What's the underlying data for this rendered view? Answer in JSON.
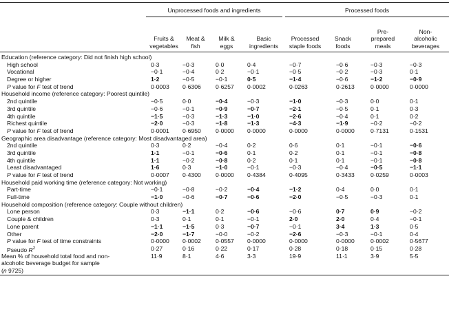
{
  "groups": {
    "unprocessed": "Unprocessed foods and ingredients",
    "processed": "Processed foods"
  },
  "columns": [
    [
      "Fruits &",
      "vegetables"
    ],
    [
      "Meat &",
      "fish"
    ],
    [
      "Milk &",
      "eggs"
    ],
    [
      "Basic",
      "ingredients"
    ],
    [
      "Processed",
      "staple foods"
    ],
    [
      "Snack",
      "foods"
    ],
    [
      "Pre-",
      "prepared",
      "meals"
    ],
    [
      "Non-",
      "alcoholic",
      "beverages"
    ]
  ],
  "rows": [
    {
      "t": "sec",
      "label": "Education (reference category: Did not finish high school)"
    },
    {
      "t": "d",
      "label": "High school",
      "v": [
        [
          "0·3",
          0
        ],
        [
          "−0·3",
          0
        ],
        [
          "0·0",
          0
        ],
        [
          "0·4",
          0
        ],
        [
          "−0·7",
          0
        ],
        [
          "−0·6",
          0
        ],
        [
          "−0·3",
          0
        ],
        [
          "−0·3",
          0
        ]
      ]
    },
    {
      "t": "d",
      "label": "Vocational",
      "v": [
        [
          "−0·1",
          0
        ],
        [
          "−0·4",
          0
        ],
        [
          "0·2",
          0
        ],
        [
          "−0·1",
          0
        ],
        [
          "−0·5",
          0
        ],
        [
          "−0·2",
          0
        ],
        [
          "−0·3",
          0
        ],
        [
          "0·1",
          0
        ]
      ]
    },
    {
      "t": "d",
      "label": "Degree or higher",
      "v": [
        [
          "1·2",
          1
        ],
        [
          "−0·5",
          0
        ],
        [
          "−0·1",
          0
        ],
        [
          "0·5",
          1
        ],
        [
          "−1·4",
          1
        ],
        [
          "−0·6",
          0
        ],
        [
          "−1·2",
          1
        ],
        [
          "−0·9",
          1
        ]
      ]
    },
    {
      "t": "p",
      "pre": "P",
      "label": " value for F test of trend",
      "v": [
        [
          "0·0003",
          0
        ],
        [
          "0·6306",
          0
        ],
        [
          "0·6257",
          0
        ],
        [
          "0·0002",
          0
        ],
        [
          "0·0263",
          0
        ],
        [
          "0·2613",
          0
        ],
        [
          "0·0000",
          0
        ],
        [
          "0·0000",
          0
        ]
      ]
    },
    {
      "t": "sec",
      "label": "Household income (reference category: Poorest quintile)"
    },
    {
      "t": "d",
      "label": "2nd quintile",
      "v": [
        [
          "−0·5",
          0
        ],
        [
          "0·0",
          0
        ],
        [
          "−0·4",
          1
        ],
        [
          "−0·3",
          0
        ],
        [
          "−1·0",
          1
        ],
        [
          "−0·3",
          0
        ],
        [
          "0·0",
          0
        ],
        [
          "0·1",
          0
        ]
      ]
    },
    {
      "t": "d",
      "label": "3rd quintile",
      "v": [
        [
          "−0·6",
          0
        ],
        [
          "−0·1",
          0
        ],
        [
          "−0·9",
          1
        ],
        [
          "−0·7",
          1
        ],
        [
          "−2·1",
          1
        ],
        [
          "−0·5",
          0
        ],
        [
          "0·1",
          0
        ],
        [
          "0·3",
          0
        ]
      ]
    },
    {
      "t": "d",
      "label": "4th quintile",
      "v": [
        [
          "−1·5",
          1
        ],
        [
          "−0·3",
          0
        ],
        [
          "−1·3",
          1
        ],
        [
          "−1·0",
          1
        ],
        [
          "−2·6",
          1
        ],
        [
          "−0·4",
          0
        ],
        [
          "0·1",
          0
        ],
        [
          "0·2",
          0
        ]
      ]
    },
    {
      "t": "d",
      "label": "Richest quintile",
      "v": [
        [
          "−2·0",
          1
        ],
        [
          "−0·3",
          0
        ],
        [
          "−1·8",
          1
        ],
        [
          "−1·3",
          1
        ],
        [
          "−4·3",
          1
        ],
        [
          "−1·9",
          1
        ],
        [
          "−0·2",
          0
        ],
        [
          "−0·2",
          0
        ]
      ]
    },
    {
      "t": "p",
      "pre": "P",
      "label": " value for F test of trend",
      "v": [
        [
          "0·0001",
          0
        ],
        [
          "0·6950",
          0
        ],
        [
          "0·0000",
          0
        ],
        [
          "0·0000",
          0
        ],
        [
          "0·0000",
          0
        ],
        [
          "0·0000",
          0
        ],
        [
          "0·7131",
          0
        ],
        [
          "0·1531",
          0
        ]
      ]
    },
    {
      "t": "sec",
      "label": "Geographic area disadvantage (reference category: Most disadvantaged area)"
    },
    {
      "t": "d",
      "label": "2nd quintile",
      "v": [
        [
          "0·3",
          0
        ],
        [
          "0·2",
          0
        ],
        [
          "−0·4",
          0
        ],
        [
          "0·2",
          0
        ],
        [
          "0·6",
          0
        ],
        [
          "0·1",
          0
        ],
        [
          "−0·1",
          0
        ],
        [
          "−0·6",
          1
        ]
      ]
    },
    {
      "t": "d",
      "label": "3rd quintile",
      "v": [
        [
          "1·1",
          1
        ],
        [
          "−0·1",
          0
        ],
        [
          "−0·6",
          1
        ],
        [
          "0·1",
          0
        ],
        [
          "0·2",
          0
        ],
        [
          "0·1",
          0
        ],
        [
          "−0·1",
          0
        ],
        [
          "−0·8",
          1
        ]
      ]
    },
    {
      "t": "d",
      "label": "4th quintile",
      "v": [
        [
          "1·1",
          1
        ],
        [
          "−0·2",
          0
        ],
        [
          "−0·8",
          1
        ],
        [
          "0·2",
          0
        ],
        [
          "0·1",
          0
        ],
        [
          "0·1",
          0
        ],
        [
          "−0·1",
          0
        ],
        [
          "−0·8",
          1
        ]
      ]
    },
    {
      "t": "d",
      "label": "Least disadvantaged",
      "v": [
        [
          "1·6",
          1
        ],
        [
          "0·3",
          0
        ],
        [
          "−1·0",
          1
        ],
        [
          "−0·1",
          0
        ],
        [
          "−0·3",
          0
        ],
        [
          "−0·4",
          0
        ],
        [
          "−0·5",
          1
        ],
        [
          "−1·1",
          1
        ]
      ]
    },
    {
      "t": "p",
      "pre": "P",
      "label": " value for F test of trend",
      "v": [
        [
          "0·0007",
          0
        ],
        [
          "0·4300",
          0
        ],
        [
          "0·0000",
          0
        ],
        [
          "0·4384",
          0
        ],
        [
          "0·4095",
          0
        ],
        [
          "0·3433",
          0
        ],
        [
          "0·0259",
          0
        ],
        [
          "0·0003",
          0
        ]
      ]
    },
    {
      "t": "sec",
      "label": "Household paid working time (reference category: Not working)"
    },
    {
      "t": "d",
      "label": "Part-time",
      "v": [
        [
          "−0·1",
          0
        ],
        [
          "−0·8",
          0
        ],
        [
          "−0·2",
          0
        ],
        [
          "−0·4",
          1
        ],
        [
          "−1·2",
          1
        ],
        [
          "0·4",
          0
        ],
        [
          "0·0",
          0
        ],
        [
          "0·1",
          0
        ]
      ]
    },
    {
      "t": "d",
      "label": "Full-time",
      "v": [
        [
          "−1·0",
          1
        ],
        [
          "−0·6",
          0
        ],
        [
          "−0·7",
          1
        ],
        [
          "−0·6",
          1
        ],
        [
          "−2·0",
          1
        ],
        [
          "−0·5",
          0
        ],
        [
          "−0·3",
          0
        ],
        [
          "0·1",
          0
        ]
      ]
    },
    {
      "t": "sec",
      "label": "Household composition (reference category: Couple without children)"
    },
    {
      "t": "d",
      "label": "Lone person",
      "v": [
        [
          "0·3",
          0
        ],
        [
          "−1·1",
          1
        ],
        [
          "0·2",
          0
        ],
        [
          "−0·6",
          1
        ],
        [
          "−0·6",
          0
        ],
        [
          "0·7",
          1
        ],
        [
          "0·9",
          1
        ],
        [
          "−0·2",
          0
        ]
      ]
    },
    {
      "t": "d",
      "label": "Couple & children",
      "v": [
        [
          "0·3",
          0
        ],
        [
          "0·1",
          0
        ],
        [
          "0·1",
          0
        ],
        [
          "−0·1",
          0
        ],
        [
          "2·0",
          1
        ],
        [
          "2·0",
          1
        ],
        [
          "0·4",
          0
        ],
        [
          "−0·1",
          0
        ]
      ]
    },
    {
      "t": "d",
      "label": "Lone parent",
      "v": [
        [
          "−1·1",
          1
        ],
        [
          "−1·5",
          1
        ],
        [
          "0·3",
          0
        ],
        [
          "−0·7",
          1
        ],
        [
          "−0·1",
          0
        ],
        [
          "3·4",
          1
        ],
        [
          "1·3",
          1
        ],
        [
          "0·5",
          0
        ]
      ]
    },
    {
      "t": "d",
      "label": "Other",
      "v": [
        [
          "−2·0",
          1
        ],
        [
          "−1·7",
          1
        ],
        [
          "−0·0",
          0
        ],
        [
          "−0·2",
          0
        ],
        [
          "−2·6",
          1
        ],
        [
          "−0·3",
          0
        ],
        [
          "−0·1",
          0
        ],
        [
          "0·4",
          0
        ]
      ]
    },
    {
      "t": "p",
      "pre": "P",
      "label": " value for F test of time constraints",
      "v": [
        [
          "0·0000",
          0
        ],
        [
          "0·0002",
          0
        ],
        [
          "0·0557",
          0
        ],
        [
          "0·0000",
          0
        ],
        [
          "0·0000",
          0
        ],
        [
          "0·0000",
          0
        ],
        [
          "0·0002",
          0
        ],
        [
          "0·5677",
          0
        ]
      ]
    },
    {
      "t": "r",
      "label": "Pseudo R",
      "sup": "2",
      "v": [
        [
          "0·27",
          0
        ],
        [
          "0·16",
          0
        ],
        [
          "0·22",
          0
        ],
        [
          "0·17",
          0
        ],
        [
          "0·28",
          0
        ],
        [
          "0·18",
          0
        ],
        [
          "0·15",
          0
        ],
        [
          "0·28",
          0
        ]
      ]
    },
    {
      "t": "m",
      "label": "Mean % of household total food and non-",
      "v": [
        [
          "11·9",
          0
        ],
        [
          "8·1",
          0
        ],
        [
          "4·6",
          0
        ],
        [
          "3·3",
          0
        ],
        [
          "19·9",
          0
        ],
        [
          "11·1",
          0
        ],
        [
          "3·9",
          0
        ],
        [
          "5·5",
          0
        ]
      ]
    },
    {
      "t": "c",
      "label": "alcoholic beverage budget for sample"
    },
    {
      "t": "c",
      "label": "(n 9725)"
    }
  ]
}
